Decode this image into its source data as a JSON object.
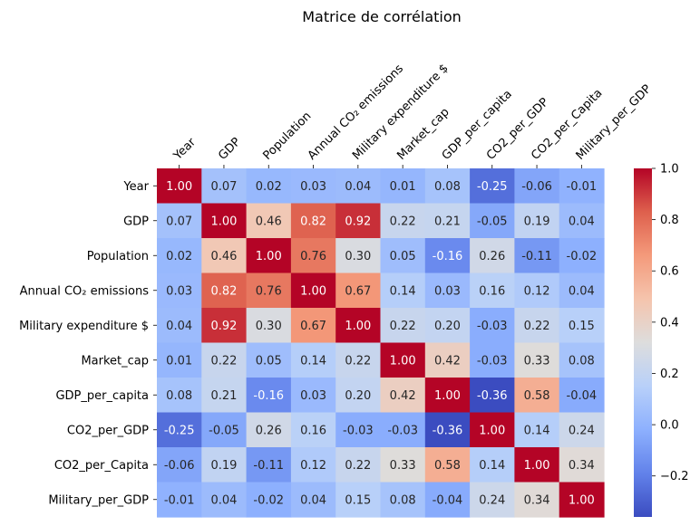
{
  "chart_data": {
    "type": "heatmap",
    "title": "Matrice de corrélation",
    "labels": [
      "Year",
      "GDP",
      "Population",
      "Annual CO₂ emissions",
      "Military expenditure $",
      "Market_cap",
      "GDP_per_capita",
      "CO2_per_GDP",
      "CO2_per_Capita",
      "Military_per_GDP"
    ],
    "values": [
      [
        1.0,
        0.07,
        0.02,
        0.03,
        0.04,
        0.01,
        0.08,
        -0.25,
        -0.06,
        -0.01
      ],
      [
        0.07,
        1.0,
        0.46,
        0.82,
        0.92,
        0.22,
        0.21,
        -0.05,
        0.19,
        0.04
      ],
      [
        0.02,
        0.46,
        1.0,
        0.76,
        0.3,
        0.05,
        -0.16,
        0.26,
        -0.11,
        -0.02
      ],
      [
        0.03,
        0.82,
        0.76,
        1.0,
        0.67,
        0.14,
        0.03,
        0.16,
        0.12,
        0.04
      ],
      [
        0.04,
        0.92,
        0.3,
        0.67,
        1.0,
        0.22,
        0.2,
        -0.03,
        0.22,
        0.15
      ],
      [
        0.01,
        0.22,
        0.05,
        0.14,
        0.22,
        1.0,
        0.42,
        -0.03,
        0.33,
        0.08
      ],
      [
        0.08,
        0.21,
        -0.16,
        0.03,
        0.2,
        0.42,
        1.0,
        -0.36,
        0.58,
        -0.04
      ],
      [
        -0.25,
        -0.05,
        0.26,
        0.16,
        -0.03,
        -0.03,
        -0.36,
        1.0,
        0.14,
        0.24
      ],
      [
        -0.06,
        0.19,
        -0.11,
        0.12,
        0.22,
        0.33,
        0.58,
        0.14,
        1.0,
        0.34
      ],
      [
        -0.01,
        0.04,
        -0.02,
        0.04,
        0.15,
        0.08,
        -0.04,
        0.24,
        0.34,
        1.0
      ]
    ],
    "colormap": "coolwarm",
    "vmin": -0.36,
    "vmax": 1.0,
    "colorbar_ticks": [
      "1.0",
      "0.8",
      "0.6",
      "0.4",
      "0.2",
      "0.0",
      "−0.2"
    ],
    "colorbar_tick_values": [
      1.0,
      0.8,
      0.6,
      0.4,
      0.2,
      0.0,
      -0.2
    ],
    "annotate_format": "2 decimals",
    "grid": false,
    "legend": "colorbar-right"
  }
}
